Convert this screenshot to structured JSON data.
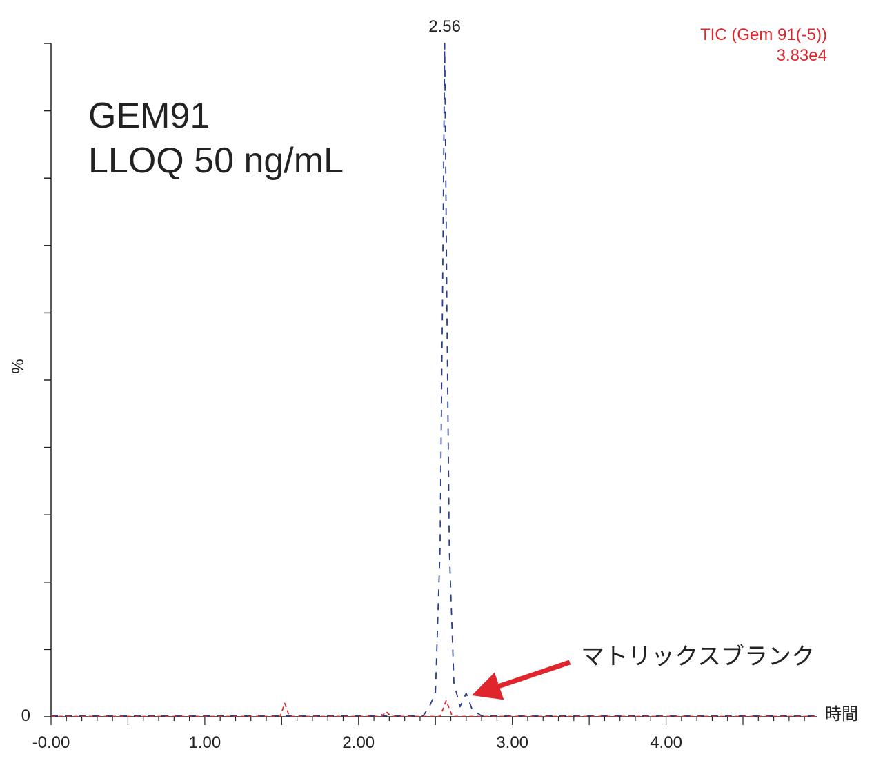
{
  "chart_data": {
    "type": "line",
    "title_lines": [
      "GEM91",
      "LLOQ 50 ng/mL"
    ],
    "trace_label": {
      "name": "TIC (Gem 91(-5))",
      "intensity": "3.83e4"
    },
    "xlabel": "時間",
    "ylabel": "%",
    "xlim": [
      0.0,
      4.98
    ],
    "ylim": [
      0,
      100
    ],
    "x_ticks": [
      {
        "value": 0.0,
        "label": "-0.00"
      },
      {
        "value": 1.0,
        "label": "1.00"
      },
      {
        "value": 2.0,
        "label": "2.00"
      },
      {
        "value": 3.0,
        "label": "3.00"
      },
      {
        "value": 4.0,
        "label": "4.00"
      }
    ],
    "y_ticks": [
      {
        "value": 0,
        "label": "0"
      }
    ],
    "peak_annotation": {
      "x": 2.56,
      "y": 100,
      "label": "2.56"
    },
    "annotation": {
      "text": "マトリックスブランク",
      "target_x": 2.73,
      "target_y": 3
    },
    "series": [
      {
        "name": "",
        "color": "#2b3f8c",
        "dash": "10,10",
        "points": [
          [
            0.0,
            0.15
          ],
          [
            2.1,
            0.15
          ],
          [
            2.13,
            0.6
          ],
          [
            2.16,
            0.15
          ],
          [
            2.42,
            0.15
          ],
          [
            2.46,
            1.5
          ],
          [
            2.5,
            3.5
          ],
          [
            2.53,
            25
          ],
          [
            2.545,
            60
          ],
          [
            2.56,
            100
          ],
          [
            2.575,
            60
          ],
          [
            2.59,
            25
          ],
          [
            2.62,
            5
          ],
          [
            2.66,
            1.5
          ],
          [
            2.7,
            3.5
          ],
          [
            2.74,
            1
          ],
          [
            2.8,
            0.15
          ],
          [
            4.98,
            0.15
          ]
        ]
      },
      {
        "name": "",
        "color": "#e0262c",
        "dash": "6,5",
        "points": [
          [
            0.0,
            0.05
          ],
          [
            1.49,
            0.05
          ],
          [
            1.52,
            2.0
          ],
          [
            1.55,
            0.05
          ],
          [
            2.15,
            0.05
          ],
          [
            2.18,
            0.8
          ],
          [
            2.21,
            0.05
          ],
          [
            2.53,
            0.05
          ],
          [
            2.57,
            2.4
          ],
          [
            2.61,
            0.05
          ],
          [
            4.98,
            0.05
          ]
        ]
      }
    ]
  }
}
